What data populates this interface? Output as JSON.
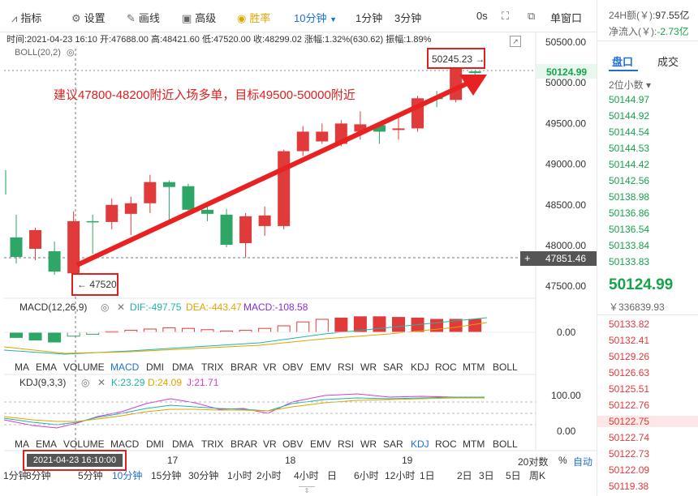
{
  "toolbar": {
    "indicator": "指标",
    "settings": "设置",
    "draw": "画线",
    "advanced": "高级",
    "winrate": "胜率",
    "interval": "10分钟",
    "m1": "1分钟",
    "m3": "3分钟",
    "zero_s": "0s",
    "single_window": "单窗口"
  },
  "info": {
    "line": "时间:2021-04-23 16:10  开:47688.00  高:48421.60  低:47520.00  收:48299.02  涨幅:1.32%(630.62)  振幅:1.89%",
    "boll": "BOLL(20,2)"
  },
  "chart_data": {
    "type": "candlestick",
    "yticks": [
      "50500.00",
      "50000.00",
      "49500.00",
      "49000.00",
      "48500.00",
      "48000.00",
      "47500.00"
    ],
    "last_price": "50124.99",
    "crosshair_price": "47851.46",
    "high_label": "50245.23 →",
    "low_label": "← 47520",
    "annotation": "建议47800-48200附近入场多单，目标49500-50000附近",
    "candles": [
      {
        "o": 48100,
        "c": 47860,
        "h": 48380,
        "l": 47780
      },
      {
        "o": 47960,
        "c": 48190,
        "h": 48220,
        "l": 47820
      },
      {
        "o": 47930,
        "c": 47680,
        "h": 48050,
        "l": 47640
      },
      {
        "o": 47660,
        "c": 48300,
        "h": 48420,
        "l": 47520
      },
      {
        "o": 48300,
        "c": 48290,
        "h": 48380,
        "l": 47900
      },
      {
        "o": 48290,
        "c": 48500,
        "h": 48580,
        "l": 48200
      },
      {
        "o": 48390,
        "c": 48520,
        "h": 48600,
        "l": 48130
      },
      {
        "o": 48520,
        "c": 48780,
        "h": 48870,
        "l": 48400
      },
      {
        "o": 48780,
        "c": 48720,
        "h": 48800,
        "l": 48300
      },
      {
        "o": 48730,
        "c": 48440,
        "h": 48760,
        "l": 48380
      },
      {
        "o": 48440,
        "c": 48390,
        "h": 48500,
        "l": 48300
      },
      {
        "o": 48380,
        "c": 48010,
        "h": 48450,
        "l": 47980
      },
      {
        "o": 48030,
        "c": 48360,
        "h": 48400,
        "l": 47850
      },
      {
        "o": 48240,
        "c": 48370,
        "h": 48480,
        "l": 48120
      },
      {
        "o": 48240,
        "c": 49160,
        "h": 49180,
        "l": 48200
      },
      {
        "o": 49160,
        "c": 49400,
        "h": 49470,
        "l": 49100
      },
      {
        "o": 49280,
        "c": 49400,
        "h": 49500,
        "l": 49250
      },
      {
        "o": 49250,
        "c": 49500,
        "h": 49540,
        "l": 49220
      },
      {
        "o": 49400,
        "c": 49490,
        "h": 49650,
        "l": 49300
      },
      {
        "o": 49480,
        "c": 49400,
        "h": 49500,
        "l": 49250
      },
      {
        "o": 49420,
        "c": 49440,
        "h": 49600,
        "l": 49300
      },
      {
        "o": 49440,
        "c": 49810,
        "h": 49840,
        "l": 49400
      },
      {
        "o": 49820,
        "c": 49800,
        "h": 49900,
        "l": 49700
      },
      {
        "o": 49790,
        "c": 50240,
        "h": 50245,
        "l": 49760
      },
      {
        "o": 50140,
        "c": 50120,
        "h": 50150,
        "l": 50090
      }
    ],
    "macd_hist": [
      -0.08,
      -0.12,
      -0.15,
      -0.06,
      -0.03,
      0.01,
      0.03,
      0.05,
      0.07,
      0.06,
      0.04,
      0.02,
      0.03,
      0.06,
      0.1,
      0.16,
      0.2,
      0.22,
      0.24,
      0.24,
      0.23,
      0.22,
      0.2,
      0.2,
      0.2
    ],
    "time_labels": [
      "17",
      "18",
      "19",
      "20对数"
    ]
  },
  "macd_row": {
    "title": "MACD(12,26,9)",
    "dif": "DIF:-497.75",
    "dea": "DEA:-443.47",
    "macd": "MACD:-108.58",
    "tick": "0.00"
  },
  "kdj_row": {
    "title": "KDJ(9,3,3)",
    "k": "K:23.29",
    "d": "D:24.09",
    "j": "J:21.71",
    "tick_hi": "100.00",
    "tick_lo": "0.00"
  },
  "indicator_tabs": [
    "MA",
    "EMA",
    "VOLUME",
    "MACD",
    "DMI",
    "DMA",
    "TRIX",
    "BRAR",
    "VR",
    "OBV",
    "EMV",
    "RSI",
    "WR",
    "SAR",
    "KDJ",
    "ROC",
    "MTM",
    "BOLL"
  ],
  "date_box": "2021-04-23 16:10:00",
  "axis_controls": {
    "pct": "%",
    "auto": "自动"
  },
  "time_buttons": [
    "1分钟",
    "3分钟",
    "5分钟",
    "10分钟",
    "15分钟",
    "30分钟",
    "1小时",
    "2小时",
    "4小时",
    "日",
    "6小时",
    "12小时",
    "1日",
    "2日",
    "3日",
    "5日",
    "周K"
  ],
  "right": {
    "vol24h": "24H额(￥):",
    "vol24h_val": "97.55亿",
    "netflow": "净流入(￥):",
    "netflow_val": "-2.73亿",
    "tab_book": "盘口",
    "tab_trades": "成交",
    "decimals": "2位小数 ▾",
    "asks": [
      "50144.97",
      "50144.92",
      "50144.54",
      "50144.53",
      "50144.42",
      "50142.56",
      "50138.98",
      "50136.86",
      "50136.54",
      "50133.84",
      "50133.83"
    ],
    "price": "50124.99",
    "price_cny": "￥336839.93",
    "bids": [
      "50133.82",
      "50132.41",
      "50129.26",
      "50126.63",
      "50125.51",
      "50122.76",
      "50122.75",
      "50122.74",
      "50122.73",
      "50122.09",
      "50119.38"
    ]
  }
}
